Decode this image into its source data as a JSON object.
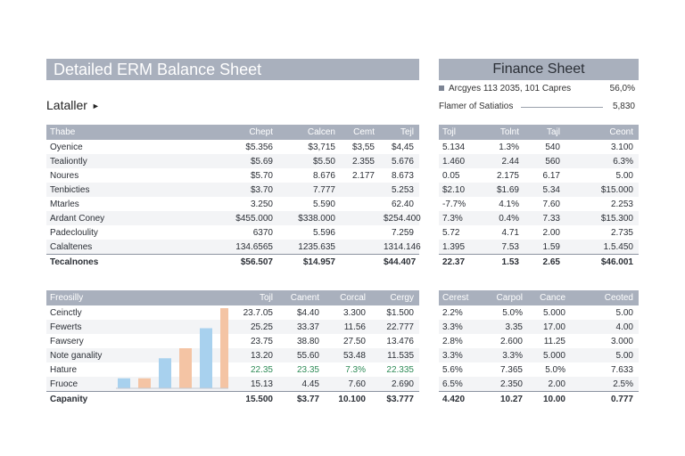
{
  "header": {
    "title": "Detailed ERM Balance Sheet",
    "finance_title": "Finance Sheet",
    "sublabel": "Lataller",
    "info_lines": [
      {
        "label": "Arcgyes 113 2035, 101 Capres",
        "value": "56,0%"
      },
      {
        "label": "Flamer of Satiatios",
        "value": "5,830"
      }
    ]
  },
  "top_left": {
    "columns": [
      "Thabe",
      "Chept",
      "Calcen",
      "Cemt",
      "Tejl"
    ],
    "rows": [
      [
        "Oyenice",
        "$5.356",
        "$3,715",
        "$3,55",
        "$4,45"
      ],
      [
        "Tealiontly",
        "$5.69",
        "$5.50",
        "2.355",
        "5.676"
      ],
      [
        "Noures",
        "$5.70",
        "8.676",
        "2.177",
        "8.673"
      ],
      [
        "Tenbicties",
        "$3.70",
        "7.777",
        "",
        "5.253"
      ],
      [
        "Mtarles",
        "3.250",
        "5.590",
        "",
        "62.40"
      ],
      [
        "Ardant Coney",
        "$455.000",
        "$338.000",
        "",
        "$254.400"
      ],
      [
        "Padecloulity",
        "6370",
        "5.596",
        "",
        "7.259"
      ],
      [
        "Calaltenes",
        "134.6565",
        "1235.635",
        "",
        "1314.146"
      ]
    ],
    "total": [
      "Tecalnones",
      "$56.507",
      "$14.957",
      "",
      "$44.407"
    ]
  },
  "top_right": {
    "columns": [
      "Tojl",
      "Tolnt",
      "Tajl",
      "Ceont"
    ],
    "rows": [
      [
        "5.134",
        "1.3%",
        "540",
        "3.100"
      ],
      [
        "1.460",
        "2.44",
        "560",
        "6.3%"
      ],
      [
        "0.05",
        "2.175",
        "6.17",
        "5.00"
      ],
      [
        "$2.10",
        "$1.69",
        "5.34",
        "$15.000"
      ],
      [
        "-7.7%",
        "4.1%",
        "7.60",
        "2.253"
      ],
      [
        "7.3%",
        "0.4%",
        "7.33",
        "$15.300"
      ],
      [
        "5.72",
        "4.71",
        "2.00",
        "2.735"
      ],
      [
        "1.395",
        "7.53",
        "1.59",
        "1.5.450"
      ]
    ],
    "total": [
      "22.37",
      "1.53",
      "2.65",
      "$46.001"
    ]
  },
  "bottom_left": {
    "columns": [
      "Freosilly",
      "",
      "Tojl",
      "Canent",
      "Corcal",
      "Cergy"
    ],
    "rows": [
      [
        "Ceinctly",
        "",
        "23.7.05",
        "$4.40",
        "3.300",
        "$1.500"
      ],
      [
        "Fewerts",
        "",
        "25.25",
        "33.37",
        "11.56",
        "22.777"
      ],
      [
        "Fawsery",
        "",
        "23.75",
        "38.80",
        "27.50",
        "13.476"
      ],
      [
        "Note ganality",
        "",
        "13.20",
        "55.60",
        "53.48",
        "11.535"
      ],
      [
        "Hature",
        "",
        "22.35",
        "23.35",
        "7.3%",
        "22.335"
      ],
      [
        "Fruoce",
        "",
        "15.13",
        "4.45",
        "7.60",
        "2.690"
      ]
    ],
    "positive_row": 4,
    "total": [
      "Capanity",
      "",
      "15.500",
      "$3.77",
      "10.100",
      "$3.777"
    ]
  },
  "bottom_right": {
    "columns": [
      "Cerest",
      "Carpol",
      "Cance",
      "Ceoted"
    ],
    "rows": [
      [
        "2.2%",
        "5.0%",
        "5.000",
        "5.00"
      ],
      [
        "3.3%",
        "3.35",
        "17.00",
        "4.00"
      ],
      [
        "2.8%",
        "2.600",
        "11.25",
        "3.000"
      ],
      [
        "3.3%",
        "3.3%",
        "5.000",
        "5.00"
      ],
      [
        "5.6%",
        "7.365",
        "5.0%",
        "7.633"
      ],
      [
        "6.5%",
        "2.350",
        "2.00",
        "2.5%"
      ]
    ],
    "total": [
      "4.420",
      "10.27",
      "10.00",
      "0.777"
    ]
  },
  "chart_data": {
    "type": "bar",
    "categories": [
      "",
      "",
      "",
      "",
      "",
      ""
    ],
    "values": [
      1,
      1,
      3,
      4,
      6,
      8
    ],
    "ylim": [
      0,
      8
    ],
    "colors": [
      "#a8d1ee",
      "#f4c4a4",
      "#a8d1ee",
      "#f4c4a4",
      "#a8d1ee",
      "#f4c4a4"
    ],
    "grid": false
  }
}
